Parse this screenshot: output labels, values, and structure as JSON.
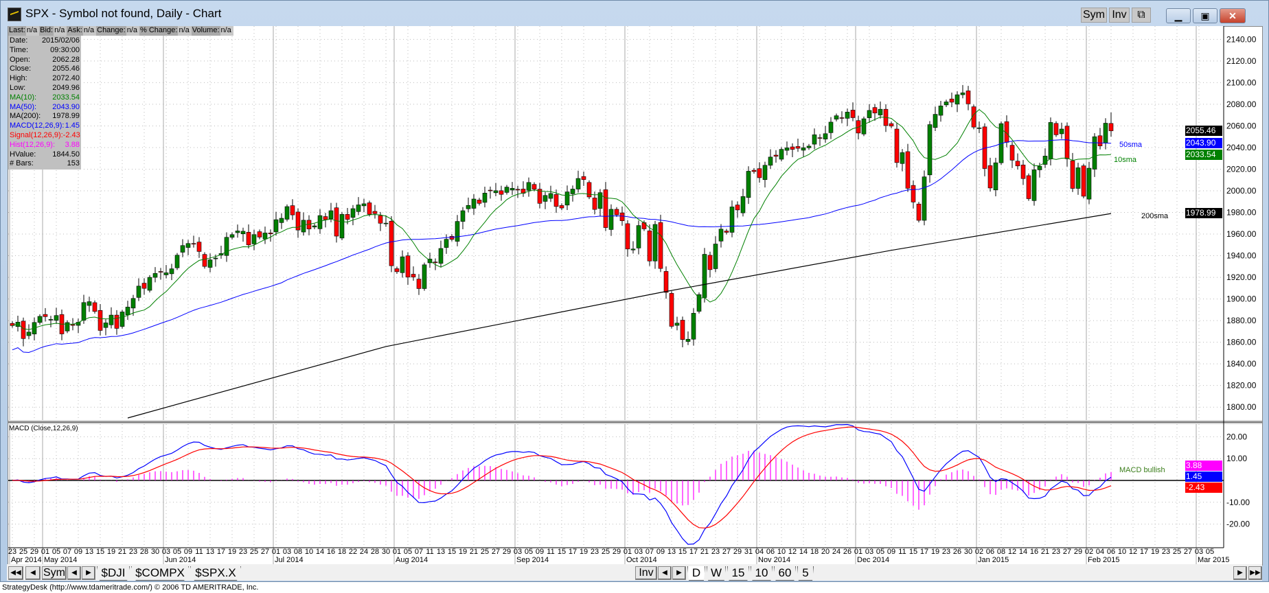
{
  "window": {
    "title": "SPX - Symbol not found, Daily - Chart",
    "sym": "Sym",
    "inv": "Inv",
    "minimize": "▁",
    "maximize": "▣",
    "close": "✕"
  },
  "infobar": [
    {
      "label": "Last:",
      "value": "n/a"
    },
    {
      "label": "Bid:",
      "value": "n/a"
    },
    {
      "label": "Ask:",
      "value": "n/a"
    },
    {
      "label": "Change:",
      "value": "n/a"
    },
    {
      "label": "% Change:",
      "value": "n/a"
    },
    {
      "label": "Volume:",
      "value": "n/a"
    }
  ],
  "databox": [
    {
      "label": "Date:",
      "value": "2015/02/06",
      "color": "#000000"
    },
    {
      "label": "Time:",
      "value": "09:30:00",
      "color": "#000000"
    },
    {
      "label": "Open:",
      "value": "2062.28",
      "color": "#000000"
    },
    {
      "label": "Close:",
      "value": "2055.46",
      "color": "#000000"
    },
    {
      "label": "High:",
      "value": "2072.40",
      "color": "#000000"
    },
    {
      "label": "Low:",
      "value": "2049.96",
      "color": "#000000"
    },
    {
      "label": "MA(10):",
      "value": "2033.54",
      "color": "#008000"
    },
    {
      "label": "MA(50):",
      "value": "2043.90",
      "color": "#0000ff"
    },
    {
      "label": "MA(200):",
      "value": "1978.99",
      "color": "#000000"
    },
    {
      "label": "MACD(12,26,9):",
      "value": "1.45",
      "color": "#0000ff"
    },
    {
      "label": "Signal(12,26,9):",
      "value": "-2.43",
      "color": "#ff0000"
    },
    {
      "label": "Hist(12,26,9):",
      "value": "3.88",
      "color": "#ff00ff"
    },
    {
      "label": "HValue:",
      "value": "1844.50",
      "color": "#000000"
    },
    {
      "label": "# Bars:",
      "value": "153",
      "color": "#000000"
    }
  ],
  "tags": {
    "close": "2055.46",
    "ma50": "2043.90",
    "ma10": "2033.54",
    "ma200": "1978.99",
    "hist": "3.88",
    "macd": "1.45",
    "signal": "-2.43"
  },
  "notes": {
    "sma50": "50sma",
    "sma10": "10sma",
    "sma200": "200sma",
    "macd_panel": "MACD (Close,12,26,9)",
    "macd_signal": "MACD bullish"
  },
  "colors": {
    "up": "#008000",
    "down": "#ff0000",
    "ma10": "#008000",
    "ma50": "#0000ff",
    "ma200": "#000000",
    "macd": "#0000ff",
    "signal": "#ff0000",
    "hist": "#ff00ff"
  },
  "chart_data": {
    "type": "candlestick",
    "title": "SPX Daily",
    "ylim": [
      1790,
      2150
    ],
    "yticks": [
      1800,
      1820,
      1840,
      1860,
      1880,
      1900,
      1920,
      1940,
      1960,
      1980,
      2000,
      2020,
      2040,
      2060,
      2080,
      2100,
      2120,
      2140
    ],
    "macd_ylim": [
      -30,
      28
    ],
    "macd_yticks": [
      20,
      10,
      -10,
      -20
    ],
    "last_bar": {
      "open": 2062.28,
      "high": 2072.4,
      "low": 2049.96,
      "close": 2055.46
    },
    "closes": [
      1875.4,
      1878.6,
      1863.4,
      1869.4,
      1878.3,
      1883.9,
      1883.7,
      1881.1,
      1884.7,
      1867.7,
      1878.2,
      1875.6,
      1878.5,
      1896.7,
      1897.5,
      1888.5,
      1870.9,
      1877.9,
      1885.1,
      1872.8,
      1888.0,
      1892.5,
      1900.5,
      1911.9,
      1909.8,
      1920.0,
      1923.6,
      1925.0,
      1924.2,
      1927.9,
      1940.5,
      1949.4,
      1951.3,
      1950.8,
      1943.9,
      1930.1,
      1936.2,
      1937.8,
      1942.0,
      1957.0,
      1959.5,
      1962.9,
      1962.6,
      1950.0,
      1959.5,
      1957.2,
      1961.0,
      1960.2,
      1973.3,
      1974.6,
      1985.4,
      1977.7,
      1963.7,
      1972.8,
      1964.7,
      1967.6,
      1977.1,
      1973.3,
      1981.6,
      1958.1,
      1978.2,
      1973.6,
      1983.5,
      1987.0,
      1988.0,
      1978.3,
      1978.9,
      1970.0,
      1970.1,
      1930.7,
      1925.2,
      1939.0,
      1920.2,
      1920.2,
      1909.6,
      1931.6,
      1936.9,
      1933.8,
      1946.7,
      1955.2,
      1955.1,
      1971.7,
      1981.6,
      1986.5,
      1992.4,
      1988.4,
      1997.9,
      2000.0,
      2000.1,
      1996.7,
      2003.4,
      2002.3,
      2000.7,
      1997.7,
      2007.7,
      2001.5,
      1988.4,
      1995.7,
      1997.5,
      1985.5,
      1984.1,
      1999.0,
      2001.6,
      2011.4,
      2010.4,
      1994.3,
      1982.8,
      1998.3,
      1966.0,
      1982.9,
      1977.8,
      1972.3,
      1946.2,
      1946.2,
      1967.9,
      1964.8,
      1935.1,
      1968.9,
      1928.2,
      1906.1,
      1874.7,
      1877.7,
      1862.5,
      1862.8,
      1886.8,
      1904.0,
      1941.3,
      1927.1,
      1950.8,
      1964.6,
      1961.6,
      1985.1,
      1982.3,
      1994.7,
      2018.1,
      2017.8,
      2012.1,
      2023.6,
      2031.2,
      2031.9,
      2038.3,
      2039.7,
      2038.3,
      2039.3,
      2039.8,
      2041.3,
      2051.8,
      2048.7,
      2052.8,
      2063.5,
      2069.4,
      2067.0,
      2072.8,
      2067.6,
      2053.4,
      2066.6,
      2074.3,
      2071.9,
      2075.4,
      2060.3,
      2059.8,
      2026.1,
      2035.3,
      2002.3,
      1989.6,
      1972.7,
      2012.9,
      2061.2,
      2070.7,
      2078.5,
      2082.2,
      2081.9,
      2088.8,
      2090.6,
      2080.4,
      2058.9,
      2058.2,
      2020.6,
      2002.6,
      2025.9,
      2062.1,
      2044.8,
      2028.3,
      2023.0,
      2011.3,
      1992.7,
      2019.4,
      2022.6,
      2032.1,
      2063.2,
      2051.8,
      2057.1,
      2029.6,
      2002.2,
      2021.3,
      1995.0,
      2020.9,
      2050.0,
      2041.5,
      2062.5,
      2055.5
    ],
    "ma200_anchors": [
      [
        21,
        1790
      ],
      [
        68,
        1856
      ],
      [
        118,
        1906
      ],
      [
        160,
        1945
      ],
      [
        200,
        1978.99
      ]
    ],
    "date_axis": {
      "days": [
        "23",
        "25",
        "29",
        "01",
        "05",
        "07",
        "09",
        "13",
        "15",
        "19",
        "21",
        "23",
        "28",
        "30",
        "03",
        "05",
        "09",
        "11",
        "13",
        "17",
        "19",
        "23",
        "25",
        "27",
        "01",
        "03",
        "08",
        "10",
        "14",
        "16",
        "18",
        "22",
        "24",
        "28",
        "30",
        "01",
        "05",
        "07",
        "11",
        "13",
        "15",
        "19",
        "21",
        "25",
        "27",
        "29",
        "03",
        "05",
        "09",
        "11",
        "15",
        "17",
        "19",
        "23",
        "25",
        "29",
        "01",
        "03",
        "07",
        "09",
        "13",
        "15",
        "17",
        "21",
        "23",
        "27",
        "29",
        "31",
        "04",
        "06",
        "10",
        "12",
        "14",
        "18",
        "20",
        "24",
        "26",
        "01",
        "03",
        "05",
        "09",
        "11",
        "15",
        "17",
        "19",
        "23",
        "26",
        "30",
        "02",
        "06",
        "08",
        "12",
        "14",
        "16",
        "21",
        "23",
        "27",
        "29",
        "02",
        "04",
        "06",
        "10",
        "12",
        "17",
        "19",
        "23",
        "25",
        "27",
        "03",
        "05"
      ],
      "months": [
        {
          "label": "Apr 2014",
          "at": 0
        },
        {
          "label": "May 2014",
          "at": 3
        },
        {
          "label": "Jun 2014",
          "at": 14
        },
        {
          "label": "Jul 2014",
          "at": 24
        },
        {
          "label": "Aug 2014",
          "at": 35
        },
        {
          "label": "Sep 2014",
          "at": 46
        },
        {
          "label": "Oct 2014",
          "at": 56
        },
        {
          "label": "Nov 2014",
          "at": 68
        },
        {
          "label": "Dec 2014",
          "at": 77
        },
        {
          "label": "Jan 2015",
          "at": 88
        },
        {
          "label": "Feb 2015",
          "at": 98
        },
        {
          "label": "Mar 2015",
          "at": 108
        }
      ]
    }
  },
  "tabbar": {
    "first": "◀◀",
    "prev": "◀",
    "sym": "Sym",
    "left": "◀",
    "right": "▶",
    "symbols": [
      "$DJI",
      "$COMPX",
      "$SPX.X"
    ],
    "inv": "Inv",
    "iprev": "◀",
    "inext": "▶",
    "periods": [
      "D",
      "W",
      "15",
      "10",
      "60",
      "5"
    ],
    "next": "▶",
    "last": "▶▶"
  },
  "status": "StrategyDesk (http://www.tdameritrade.com/) © 2006 TD AMERITRADE, Inc."
}
